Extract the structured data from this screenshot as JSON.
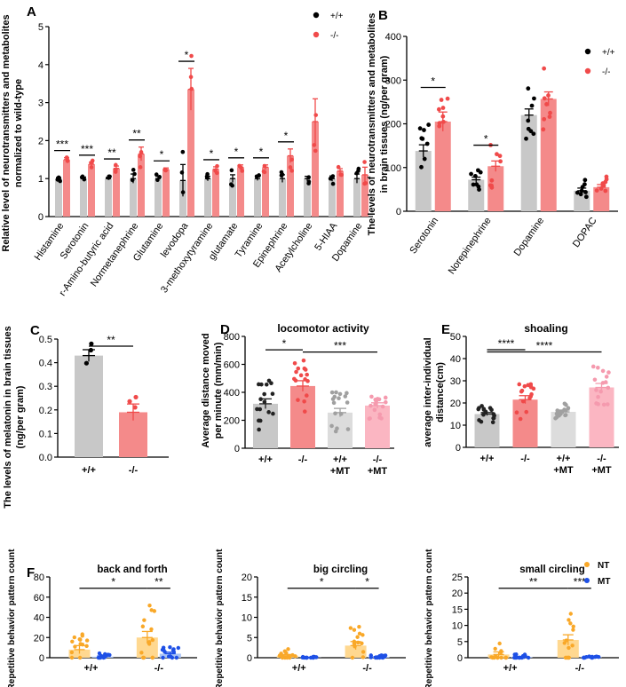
{
  "figure_colors": {
    "wt": "#000000",
    "ko": "#F04A4A",
    "ko_bar": "#F48A8A",
    "wt_bar": "#C8C8C8",
    "wt_mt_bar": "#DCDCDC",
    "ko_mt_bar": "#FBB6C2",
    "nt": "#F9A828",
    "nt_bar": "#FFD890",
    "mt": "#1E50E6",
    "mt_bar": "#A9C3F6"
  },
  "chart_data": [
    {
      "id": "A",
      "panel_label": "A",
      "type": "bar",
      "ylabel_line1": "Relative level of neurotransmitters and metabolites",
      "ylabel_line2": "normalized to wild-type",
      "ylim": [
        0,
        5
      ],
      "yticks": [
        "0",
        "1",
        "2",
        "3",
        "4",
        "5"
      ],
      "categories": [
        "Histamine",
        "Serotonin",
        "r-Amino-butyric acid",
        "Normetanephrine",
        "Glutamine",
        "levodopa",
        "3-methoxytyramine",
        "glutamate",
        "Tyramine",
        "Epinephrine",
        "Acetylcholine",
        "5-HIAA",
        "Dopamine"
      ],
      "series": [
        {
          "name": "+/+",
          "values": [
            1,
            1,
            1,
            1,
            1,
            0.95,
            1,
            1,
            1,
            1,
            1,
            1,
            1
          ],
          "errors": [
            0.03,
            0.04,
            0.03,
            0.12,
            0.06,
            0.42,
            0.06,
            0.1,
            0.05,
            0.1,
            0.06,
            0.07,
            0.12
          ]
        },
        {
          "name": "-/-",
          "values": [
            1.5,
            1.38,
            1.27,
            1.65,
            1.24,
            3.35,
            1.25,
            1.3,
            1.3,
            1.6,
            2.5,
            1.2,
            1.1
          ],
          "errors": [
            0.05,
            0.05,
            0.06,
            0.18,
            0.04,
            0.55,
            0.06,
            0.06,
            0.06,
            0.18,
            0.6,
            0.06,
            0.2
          ]
        }
      ],
      "legend": [
        "+/+",
        "-/-"
      ],
      "significance": [
        {
          "category": 0,
          "label": "***"
        },
        {
          "category": 1,
          "label": "***"
        },
        {
          "category": 2,
          "label": "**"
        },
        {
          "category": 3,
          "label": "**"
        },
        {
          "category": 4,
          "label": "*"
        },
        {
          "category": 5,
          "label": "*"
        },
        {
          "category": 6,
          "label": "*"
        },
        {
          "category": 7,
          "label": "*"
        },
        {
          "category": 8,
          "label": "*"
        },
        {
          "category": 9,
          "label": "*"
        }
      ]
    },
    {
      "id": "B",
      "panel_label": "B",
      "type": "bar",
      "ylabel_line1": "The levels of  neurotransmitters and metabolites",
      "ylabel_line2": "in brain tissues (ng/per gram)",
      "ylim": [
        0,
        400
      ],
      "yticks": [
        "0",
        "100",
        "200",
        "300",
        "400"
      ],
      "categories": [
        "Serotonin",
        "Norepinephrine",
        "Dopamine",
        "DOPAC"
      ],
      "series": [
        {
          "name": "+/+",
          "values": [
            138,
            72,
            220,
            47
          ],
          "errors": [
            14,
            6,
            14,
            6
          ]
        },
        {
          "name": "-/-",
          "values": [
            205,
            103,
            257,
            55
          ],
          "errors": [
            22,
            12,
            16,
            6
          ]
        }
      ],
      "legend": [
        "+/+",
        "-/-"
      ],
      "significance": [
        {
          "category": 0,
          "label": "*"
        },
        {
          "category": 1,
          "label": "*"
        }
      ]
    },
    {
      "id": "C",
      "panel_label": "C",
      "type": "bar",
      "ylabel_line1": "The levels of  melatonin in brain tissues",
      "ylabel_line2": "(ng/per gram)",
      "ylim": [
        0,
        0.5
      ],
      "yticks": [
        "0.0",
        "0.1",
        "0.2",
        "0.3",
        "0.4",
        "0.5"
      ],
      "categories": [
        "+/+",
        "-/-"
      ],
      "values": [
        0.43,
        0.19
      ],
      "errors": [
        0.025,
        0.035
      ],
      "significance": [
        {
          "from": 0,
          "to": 1,
          "label": "**"
        }
      ]
    },
    {
      "id": "D",
      "panel_label": "D",
      "type": "bar",
      "title": "locomotor activity",
      "ylabel_line1": "Average distance moved",
      "ylabel_line2": "per minute (mm/min)",
      "ylim": [
        0,
        800
      ],
      "yticks": [
        "0",
        "200",
        "400",
        "600",
        "800"
      ],
      "categories": [
        "+/+",
        "-/-",
        "+/+\n+MT",
        "-/-\n+MT"
      ],
      "values": [
        318,
        445,
        255,
        305
      ],
      "errors": [
        35,
        38,
        30,
        20
      ],
      "significance": [
        {
          "from": 0,
          "to": 1,
          "label": "*"
        },
        {
          "from": 1,
          "to": 3,
          "label": "***"
        }
      ]
    },
    {
      "id": "E",
      "panel_label": "E",
      "type": "bar",
      "title": "shoaling",
      "ylabel_line1": "average inter-individual",
      "ylabel_line2": "distance(cm)",
      "ylim": [
        0,
        50
      ],
      "yticks": [
        "0",
        "10",
        "20",
        "30",
        "40",
        "50"
      ],
      "categories": [
        "+/+",
        "-/-",
        "+/+\n+MT",
        "-/-\n+MT"
      ],
      "values": [
        15,
        21.5,
        16,
        27
      ],
      "errors": [
        0.7,
        1.8,
        0.8,
        1.8
      ],
      "significance": [
        {
          "from": 0,
          "to": 1,
          "label": "****"
        },
        {
          "from": 0,
          "to": 3,
          "label": "****"
        }
      ]
    },
    {
      "id": "F1",
      "panel_label": "F",
      "type": "bar",
      "title": "back and forth",
      "ylabel_line1": "Repetitive behavior pattern count",
      "ylim": [
        0,
        80
      ],
      "yticks": [
        "0",
        "20",
        "40",
        "60",
        "80"
      ],
      "categories": [
        "+/+",
        "-/-"
      ],
      "series": [
        {
          "name": "NT",
          "values": [
            8,
            20
          ],
          "errors": [
            4,
            6
          ]
        },
        {
          "name": "MT",
          "values": [
            1,
            4
          ],
          "errors": [
            0.8,
            1.5
          ]
        }
      ],
      "significance": [
        {
          "from": "NT:0",
          "to": "NT:1",
          "label": "*"
        },
        {
          "from": "NT:1",
          "to": "MT:1",
          "label": "**"
        }
      ]
    },
    {
      "id": "F2",
      "type": "bar",
      "title": "big circling",
      "ylabel_line1": "Repetitive behavior pattern count",
      "ylim": [
        0,
        20
      ],
      "yticks": [
        "0",
        "5",
        "10",
        "15",
        "20"
      ],
      "categories": [
        "+/+",
        "-/-"
      ],
      "series": [
        {
          "name": "NT",
          "values": [
            0.5,
            3
          ],
          "errors": [
            0.3,
            1
          ]
        },
        {
          "name": "MT",
          "values": [
            0.05,
            0.2
          ],
          "errors": [
            0.05,
            0.1
          ]
        }
      ],
      "significance": [
        {
          "from": "NT:0",
          "to": "NT:1",
          "label": "*"
        },
        {
          "from": "NT:1",
          "to": "MT:1",
          "label": "*"
        }
      ]
    },
    {
      "id": "F3",
      "type": "bar",
      "title": "small circling",
      "ylabel_line1": "Repetitive behavior pattern count",
      "ylim": [
        0,
        25
      ],
      "yticks": [
        "0",
        "5",
        "10",
        "15",
        "20",
        "25"
      ],
      "categories": [
        "+/+",
        "-/-"
      ],
      "series": [
        {
          "name": "NT",
          "values": [
            1,
            5.5
          ],
          "errors": [
            0.8,
            1.6
          ]
        },
        {
          "name": "MT",
          "values": [
            0.2,
            0.1
          ],
          "errors": [
            0.2,
            0.08
          ]
        }
      ],
      "legend": [
        "NT",
        "MT"
      ],
      "significance": [
        {
          "from": "NT:0",
          "to": "NT:1",
          "label": "**"
        },
        {
          "from": "NT:1",
          "to": "MT:1",
          "label": "***"
        }
      ]
    }
  ]
}
